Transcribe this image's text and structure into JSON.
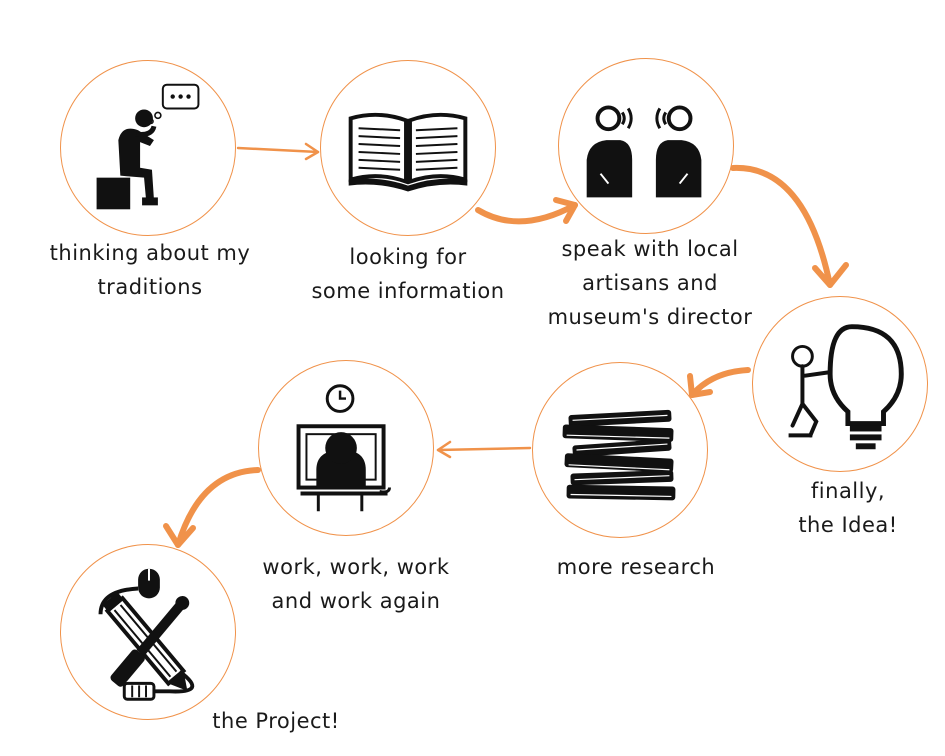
{
  "accent_color": "#f0924a",
  "steps": [
    {
      "label": "thinking about my\ntraditions",
      "icon": "thinking-person-icon"
    },
    {
      "label": "looking for\nsome information",
      "icon": "open-book-icon"
    },
    {
      "label": "speak with local\nartisans and\nmuseum's director",
      "icon": "conversation-icon"
    },
    {
      "label": "finally,\nthe Idea!",
      "icon": "lightbulb-icon"
    },
    {
      "label": "more research",
      "icon": "book-stack-icon"
    },
    {
      "label": "work, work, work\nand work again",
      "icon": "computer-work-icon"
    },
    {
      "label": "the Project!",
      "icon": "design-tools-icon"
    }
  ]
}
